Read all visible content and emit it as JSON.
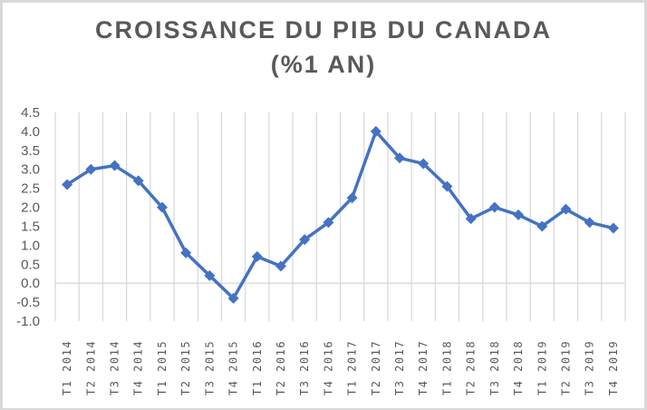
{
  "chart_data": {
    "type": "line",
    "title": "CROISSANCE DU PIB DU CANADA (%1 AN)",
    "title_lines": [
      "CROISSANCE  DU PIB DU CANADA",
      "(%1 AN)"
    ],
    "xlabel": "",
    "ylabel": "",
    "ylim": [
      -1.0,
      4.5
    ],
    "yticks": [
      "4.5",
      "4.0",
      "3.5",
      "3.0",
      "2.5",
      "2.0",
      "1.5",
      "1.0",
      "0.5",
      "0.0",
      "-0.5",
      "-1.0"
    ],
    "grid": {
      "vertical": true,
      "horizontal": false,
      "zero_line": true
    },
    "legend": null,
    "marker": "diamond",
    "color": "#4472c4",
    "categories": [
      "T1 2014",
      "T2 2014",
      "T3 2014",
      "T4 2014",
      "T1 2015",
      "T2 2015",
      "T3 2015",
      "T4 2015",
      "T1 2016",
      "T2 2016",
      "T3 2016",
      "T4 2016",
      "T1 2017",
      "T2 2017",
      "T3 2017",
      "T4 2017",
      "T1 2018",
      "T2 2018",
      "T3 2018",
      "T4 2018",
      "T1 2019",
      "T2 2019",
      "T3 2019",
      "T4 2019"
    ],
    "series": [
      {
        "name": "Croissance du PIB (%1 an)",
        "values": [
          2.6,
          3.0,
          3.1,
          2.7,
          2.0,
          0.8,
          0.2,
          -0.4,
          0.7,
          0.45,
          1.15,
          1.6,
          2.25,
          4.0,
          3.3,
          3.15,
          2.55,
          1.7,
          2.0,
          1.8,
          1.5,
          1.95,
          1.6,
          1.45
        ]
      }
    ]
  }
}
